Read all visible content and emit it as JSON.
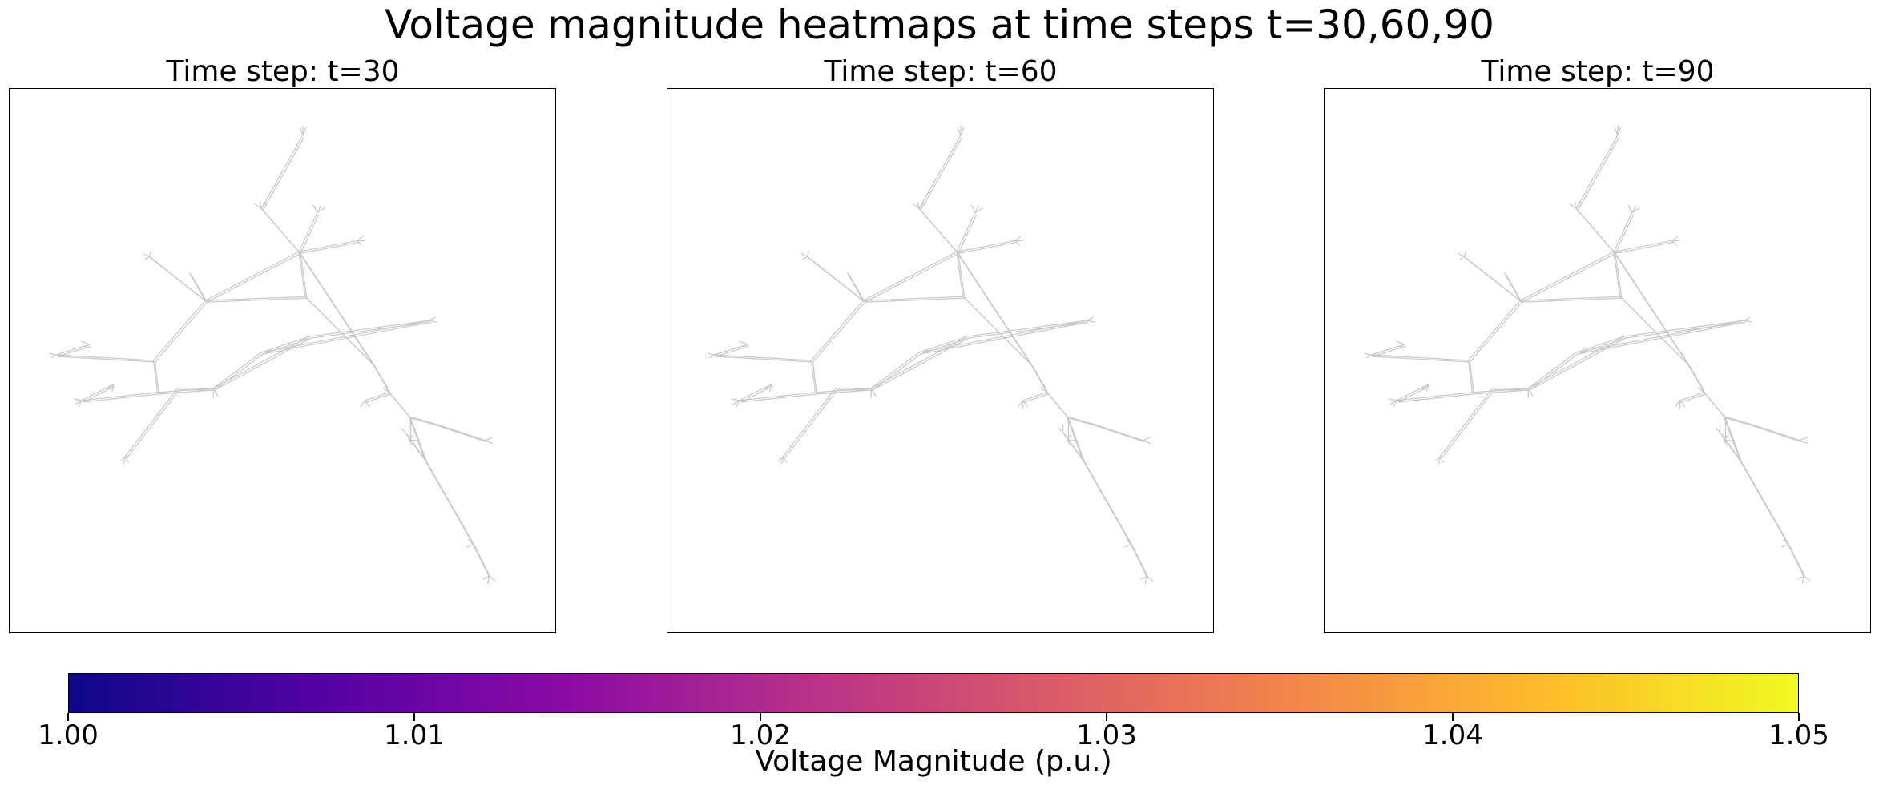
{
  "chart_data": {
    "type": "heatmap",
    "title": "Voltage magnitude heatmaps at time steps t=30,60,90",
    "panels": [
      {
        "title": "Time step: t=30"
      },
      {
        "title": "Time step: t=60"
      },
      {
        "title": "Time step: t=90"
      }
    ],
    "colorbar": {
      "label": "Voltage Magnitude (p.u.)",
      "colormap": "plasma",
      "range": [
        1.0,
        1.05
      ],
      "ticks": [
        "1.00",
        "1.01",
        "1.02",
        "1.03",
        "1.04",
        "1.05"
      ],
      "colors": [
        "#0d0887",
        "#5302a3",
        "#8b0aa5",
        "#b83289",
        "#db5c68",
        "#f48849",
        "#febd2a",
        "#f0f921"
      ]
    },
    "edge_color": "#c8c8c8",
    "grid": false
  }
}
